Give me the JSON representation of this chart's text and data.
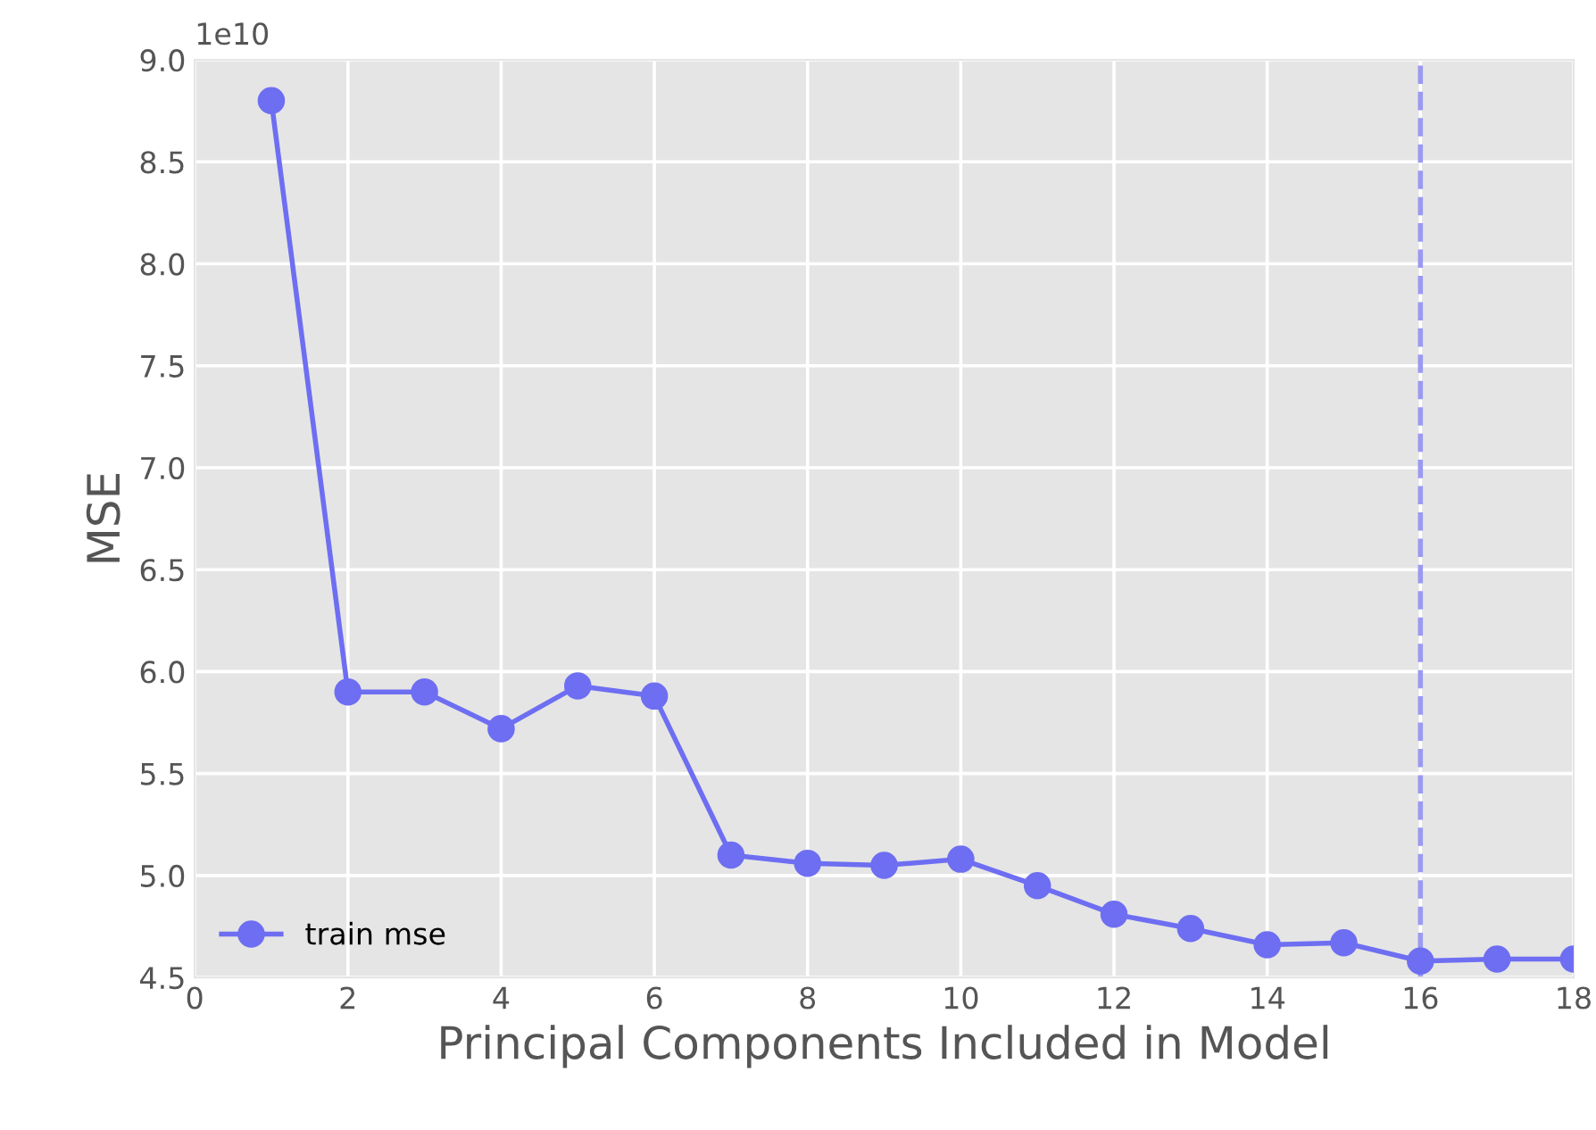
{
  "chart_data": {
    "type": "line",
    "xlabel": "Principal Components Included in Model",
    "ylabel": "MSE",
    "annotations": [
      "1e10"
    ],
    "series": [
      {
        "name": "train mse",
        "color": "#6e6ef2",
        "x": [
          1,
          2,
          3,
          4,
          5,
          6,
          7,
          8,
          9,
          10,
          11,
          12,
          13,
          14,
          15,
          16,
          17,
          18
        ],
        "values": [
          8.8,
          5.9,
          5.9,
          5.72,
          5.93,
          5.88,
          5.1,
          5.06,
          5.05,
          5.08,
          4.95,
          4.81,
          4.74,
          4.66,
          4.67,
          4.58,
          4.59,
          4.59
        ]
      }
    ],
    "xlim": [
      0,
      18
    ],
    "xticks": [
      0,
      2,
      4,
      6,
      8,
      10,
      12,
      14,
      16,
      18
    ],
    "ylim": [
      4.5,
      9.0
    ],
    "yticks": [
      {
        "value": 4.5,
        "label": "4.5"
      },
      {
        "value": 5.0,
        "label": "5.0"
      },
      {
        "value": 5.5,
        "label": "5.5"
      },
      {
        "value": 6.0,
        "label": "6.0"
      },
      {
        "value": 6.5,
        "label": "6.5"
      },
      {
        "value": 7.0,
        "label": "7.0"
      },
      {
        "value": 7.5,
        "label": "7.5"
      },
      {
        "value": 8.0,
        "label": "8.0"
      },
      {
        "value": 8.5,
        "label": "8.5"
      },
      {
        "value": 9.0,
        "label": "9.0"
      }
    ],
    "ref_lines": [
      {
        "axis": "x",
        "value": 16,
        "color": "#9a9af2",
        "line_style": "dashed"
      }
    ],
    "grid": true,
    "legend": "bottom left",
    "marker": "circle",
    "line_style": "solid"
  }
}
